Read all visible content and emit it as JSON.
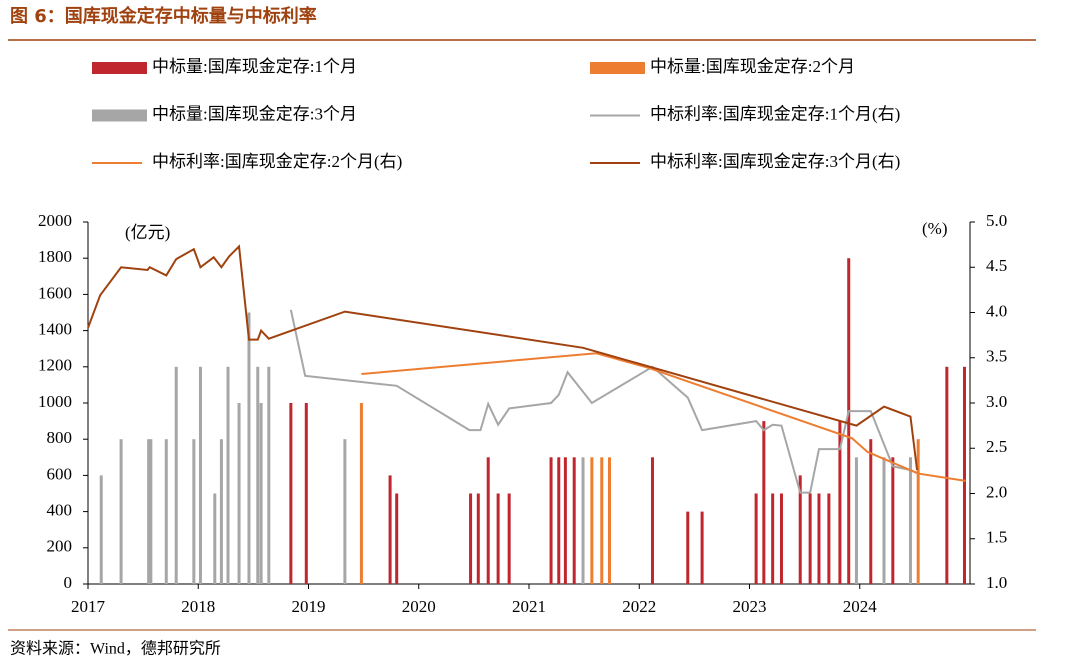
{
  "title": "图 6：国库现金定存中标量与中标利率",
  "source": "资料来源：Wind，德邦研究所",
  "chart_data": {
    "type": "combo",
    "y_unit": "(亿元)",
    "y2_unit": "(%)",
    "xlim": [
      2017,
      2025
    ],
    "xticks": [
      2017,
      2018,
      2019,
      2020,
      2021,
      2022,
      2023,
      2024
    ],
    "ylim": [
      0,
      2000
    ],
    "yticks": [
      0,
      200,
      400,
      600,
      800,
      1000,
      1200,
      1400,
      1600,
      1800,
      2000
    ],
    "y2lim": [
      1,
      5
    ],
    "y2ticks": [
      {
        "value": 1,
        "label": "1.0"
      },
      {
        "value": 1.5,
        "label": "1.5"
      },
      {
        "value": 2,
        "label": "2.0"
      },
      {
        "value": 2.5,
        "label": "2.5"
      },
      {
        "value": 3,
        "label": "3.0"
      },
      {
        "value": 3.5,
        "label": "3.5"
      },
      {
        "value": 4,
        "label": "4.0"
      },
      {
        "value": 4.5,
        "label": "4.5"
      },
      {
        "value": 5,
        "label": "5.0"
      }
    ],
    "series": [
      {
        "name": "中标量:国库现金定存:1个月",
        "type": "bar",
        "color": "#c0262d",
        "x": [
          2018.84,
          2018.98,
          2019.74,
          2019.8,
          2020.47,
          2020.54,
          2020.63,
          2020.72,
          2020.82,
          2021.2,
          2021.27,
          2021.33,
          2021.41,
          2022.12,
          2022.44,
          2022.57,
          2023.06,
          2023.13,
          2023.21,
          2023.29,
          2023.46,
          2023.55,
          2023.63,
          2023.72,
          2023.82,
          2023.9,
          2024.1,
          2024.3,
          2024.79,
          2024.95
        ],
        "values": [
          1000,
          1000,
          600,
          500,
          500,
          500,
          700,
          500,
          500,
          700,
          700,
          700,
          700,
          700,
          400,
          400,
          500,
          900,
          500,
          500,
          600,
          500,
          500,
          500,
          900,
          1800,
          800,
          700,
          1200,
          1200
        ]
      },
      {
        "name": "中标量:国库现金定存:2个月",
        "type": "bar",
        "color": "#ed7d31",
        "x": [
          2019.48,
          2021.57,
          2021.66,
          2021.73,
          2024.53
        ],
        "values": [
          1000,
          700,
          700,
          700,
          800
        ]
      },
      {
        "name": "中标量:国库现金定存:3个月",
        "type": "bar",
        "color": "#a6a6a6",
        "x": [
          2017.12,
          2017.3,
          2017.55,
          2017.57,
          2017.71,
          2017.8,
          2017.96,
          2018.02,
          2018.15,
          2018.21,
          2018.27,
          2018.37,
          2018.46,
          2018.54,
          2018.57,
          2018.64,
          2019.33,
          2021.49,
          2023.97,
          2024.22,
          2024.46
        ],
        "values": [
          600,
          800,
          800,
          800,
          800,
          1200,
          800,
          1200,
          500,
          800,
          1200,
          1000,
          1500,
          1200,
          1000,
          1200,
          800,
          700,
          700,
          700,
          700
        ]
      },
      {
        "name": "中标利率:国库现金定存:1个月(右)",
        "type": "line",
        "axis": "y2",
        "color": "#a6a6a6",
        "x": [
          2018.84,
          2018.97,
          2019.8,
          2020.46,
          2020.56,
          2020.63,
          2020.72,
          2020.82,
          2021.2,
          2021.27,
          2021.35,
          2021.57,
          2022.12,
          2022.44,
          2022.57,
          2023.06,
          2023.13,
          2023.21,
          2023.29,
          2023.46,
          2023.55,
          2023.63,
          2023.82,
          2023.9,
          2024.1,
          2024.3,
          2024.46,
          2024.53
        ],
        "values": [
          4.03,
          3.3,
          3.19,
          2.7,
          2.7,
          2.99,
          2.76,
          2.94,
          3.0,
          3.09,
          3.34,
          3.0,
          3.4,
          3.06,
          2.7,
          2.8,
          2.7,
          2.76,
          2.75,
          2.01,
          2.01,
          2.49,
          2.49,
          2.91,
          2.91,
          2.3,
          2.26,
          2.22
        ]
      },
      {
        "name": "中标利率:国库现金定存:2个月(右)",
        "type": "line",
        "axis": "y2",
        "color": "#ed7d31",
        "x": [
          2019.48,
          2021.61,
          2022.08,
          2023.93,
          2024.07,
          2024.53,
          2024.96
        ],
        "values": [
          3.32,
          3.55,
          3.39,
          2.61,
          2.46,
          2.22,
          2.14
        ]
      },
      {
        "name": "中标利率:国库现金定存:3个月(右)",
        "type": "line",
        "axis": "y2",
        "color": "#a0420f",
        "x": [
          2017.0,
          2017.11,
          2017.3,
          2017.54,
          2017.56,
          2017.71,
          2017.8,
          2017.96,
          2018.02,
          2018.14,
          2018.21,
          2018.28,
          2018.37,
          2018.46,
          2018.54,
          2018.57,
          2018.64,
          2019.33,
          2021.49,
          2023.97,
          2024.22,
          2024.46,
          2024.52
        ],
        "values": [
          3.83,
          4.19,
          4.5,
          4.47,
          4.5,
          4.41,
          4.59,
          4.7,
          4.5,
          4.61,
          4.5,
          4.62,
          4.73,
          3.7,
          3.7,
          3.8,
          3.71,
          4.01,
          3.61,
          2.75,
          2.96,
          2.85,
          2.26
        ]
      }
    ]
  }
}
